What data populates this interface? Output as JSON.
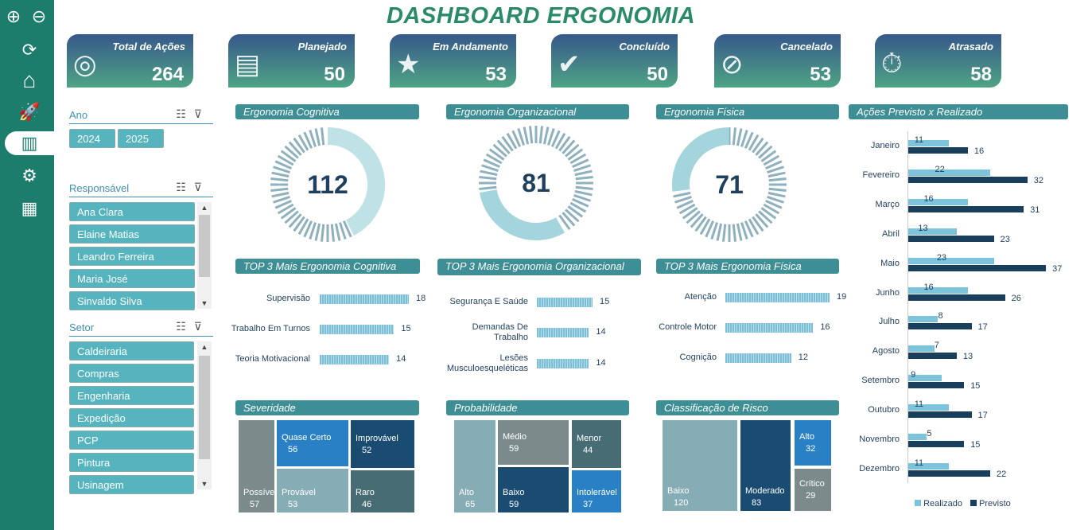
{
  "title": "DASHBOARD ERGONOMIA",
  "sidebar": {
    "items": [
      {
        "icon": "zoom-in-icon",
        "glyph": "⊕"
      },
      {
        "icon": "zoom-out-icon",
        "glyph": "⊖"
      },
      {
        "icon": "refresh-icon",
        "glyph": "⟳"
      },
      {
        "icon": "home-icon",
        "glyph": "⌂"
      },
      {
        "icon": "rocket-icon",
        "glyph": "🚀"
      },
      {
        "icon": "bar-chart-icon",
        "glyph": "▥",
        "active": true
      },
      {
        "icon": "gear-icon",
        "glyph": "⚙"
      },
      {
        "icon": "calculator-icon",
        "glyph": "▦"
      }
    ]
  },
  "kpis": [
    {
      "label": "Total de Ações",
      "value": "264",
      "icon": "target-icon",
      "glyph": "◎"
    },
    {
      "label": "Planejado",
      "value": "50",
      "icon": "presentation-icon",
      "glyph": "▤"
    },
    {
      "label": "Em Andamento",
      "value": "53",
      "icon": "progress-star-icon",
      "glyph": "★"
    },
    {
      "label": "Concluído",
      "value": "50",
      "icon": "checkmark-icon",
      "glyph": "✔"
    },
    {
      "label": "Cancelado",
      "value": "53",
      "icon": "canceled-stamp-icon",
      "glyph": "⊘"
    },
    {
      "label": "Atrasado",
      "value": "58",
      "icon": "stopwatch-warning-icon",
      "glyph": "⏱"
    }
  ],
  "filters": {
    "ano": {
      "label": "Ano",
      "options": [
        "2024",
        "2025"
      ]
    },
    "responsavel": {
      "label": "Responsável",
      "options": [
        "Ana Clara",
        "Elaine Matias",
        "Leandro Ferreira",
        "Maria José",
        "Sinvaldo Silva"
      ]
    },
    "setor": {
      "label": "Setor",
      "options": [
        "Caldeiraria",
        "Compras",
        "Engenharia",
        "Expedição",
        "PCP",
        "Pintura",
        "Usinagem"
      ]
    }
  },
  "donuts": [
    {
      "title": "Ergonomia Cognitiva",
      "value": "112"
    },
    {
      "title": "Ergonomia Organizacional",
      "value": "81"
    },
    {
      "title": "Ergonomia Física",
      "value": "71"
    }
  ],
  "chart_data": [
    {
      "type": "bar",
      "title": "TOP 3 Mais Ergonomia Cognitiva",
      "categories": [
        "Supervisão",
        "Trabalho Em Turnos",
        "Teoria Motivacional"
      ],
      "values": [
        18,
        15,
        14
      ]
    },
    {
      "type": "bar",
      "title": "TOP 3 Mais Ergonomia Organizacional",
      "categories": [
        "Segurança E Saúde",
        "Demandas De Trabalho",
        "Lesões Musculoesqueléticas"
      ],
      "values": [
        15,
        14,
        14
      ]
    },
    {
      "type": "bar",
      "title": "TOP 3 Mais Ergonomia Física",
      "categories": [
        "Atenção",
        "Controle Motor",
        "Cognição"
      ],
      "values": [
        19,
        16,
        12
      ]
    },
    {
      "type": "treemap",
      "title": "Severidade",
      "categories": [
        "Possível",
        "Quase Certo",
        "Provável",
        "Improvável",
        "Raro"
      ],
      "values": [
        57,
        56,
        53,
        52,
        46
      ]
    },
    {
      "type": "treemap",
      "title": "Probabilidade",
      "categories": [
        "Alto",
        "Médio",
        "Baixo",
        "Menor",
        "Intolerável"
      ],
      "values": [
        65,
        59,
        59,
        44,
        37
      ]
    },
    {
      "type": "treemap",
      "title": "Classificação de Risco",
      "categories": [
        "Baixo",
        "Moderado",
        "Alto",
        "Crítico"
      ],
      "values": [
        120,
        83,
        32,
        29
      ]
    },
    {
      "type": "bar",
      "title": "Ações Previsto x Realizado",
      "legend": "bottom",
      "categories": [
        "Janeiro",
        "Fevereiro",
        "Março",
        "Abril",
        "Maio",
        "Junho",
        "Julho",
        "Agosto",
        "Setembro",
        "Outubro",
        "Novembro",
        "Dezembro"
      ],
      "series": [
        {
          "name": "Realizado",
          "color": "#7ec3dc",
          "values": [
            11,
            22,
            16,
            13,
            23,
            16,
            8,
            7,
            9,
            11,
            5,
            11
          ]
        },
        {
          "name": "Previsto",
          "color": "#1a3f5c",
          "values": [
            16,
            32,
            31,
            23,
            37,
            26,
            17,
            13,
            15,
            17,
            15,
            22
          ]
        }
      ]
    }
  ]
}
